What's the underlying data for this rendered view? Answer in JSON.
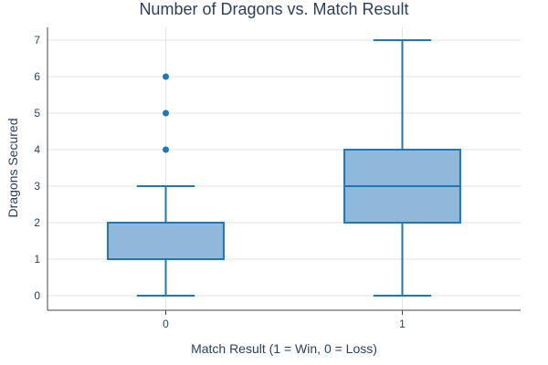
{
  "chart_data": {
    "type": "box",
    "title": "Number of Dragons vs. Match Result",
    "xlabel": "Match Result (1 = Win, 0 = Loss)",
    "ylabel": "Dragons Secured",
    "categories": [
      "0",
      "1"
    ],
    "ylim": [
      -0.4,
      7.35
    ],
    "yticks": [
      0,
      1,
      2,
      3,
      4,
      5,
      6,
      7
    ],
    "grid": true,
    "boxes": [
      {
        "category": "0",
        "min": 0,
        "q1": 1,
        "median": 1,
        "q3": 2,
        "max": 3,
        "outliers": [
          4,
          5,
          6
        ]
      },
      {
        "category": "1",
        "min": 0,
        "q1": 2,
        "median": 3,
        "q3": 4,
        "max": 7,
        "outliers": []
      }
    ],
    "colors": {
      "line": "#1f77b4",
      "fill": "#8fb8da",
      "grid": "#e5e5e5",
      "axis": "#444444",
      "text": "#2a3f5f"
    }
  }
}
